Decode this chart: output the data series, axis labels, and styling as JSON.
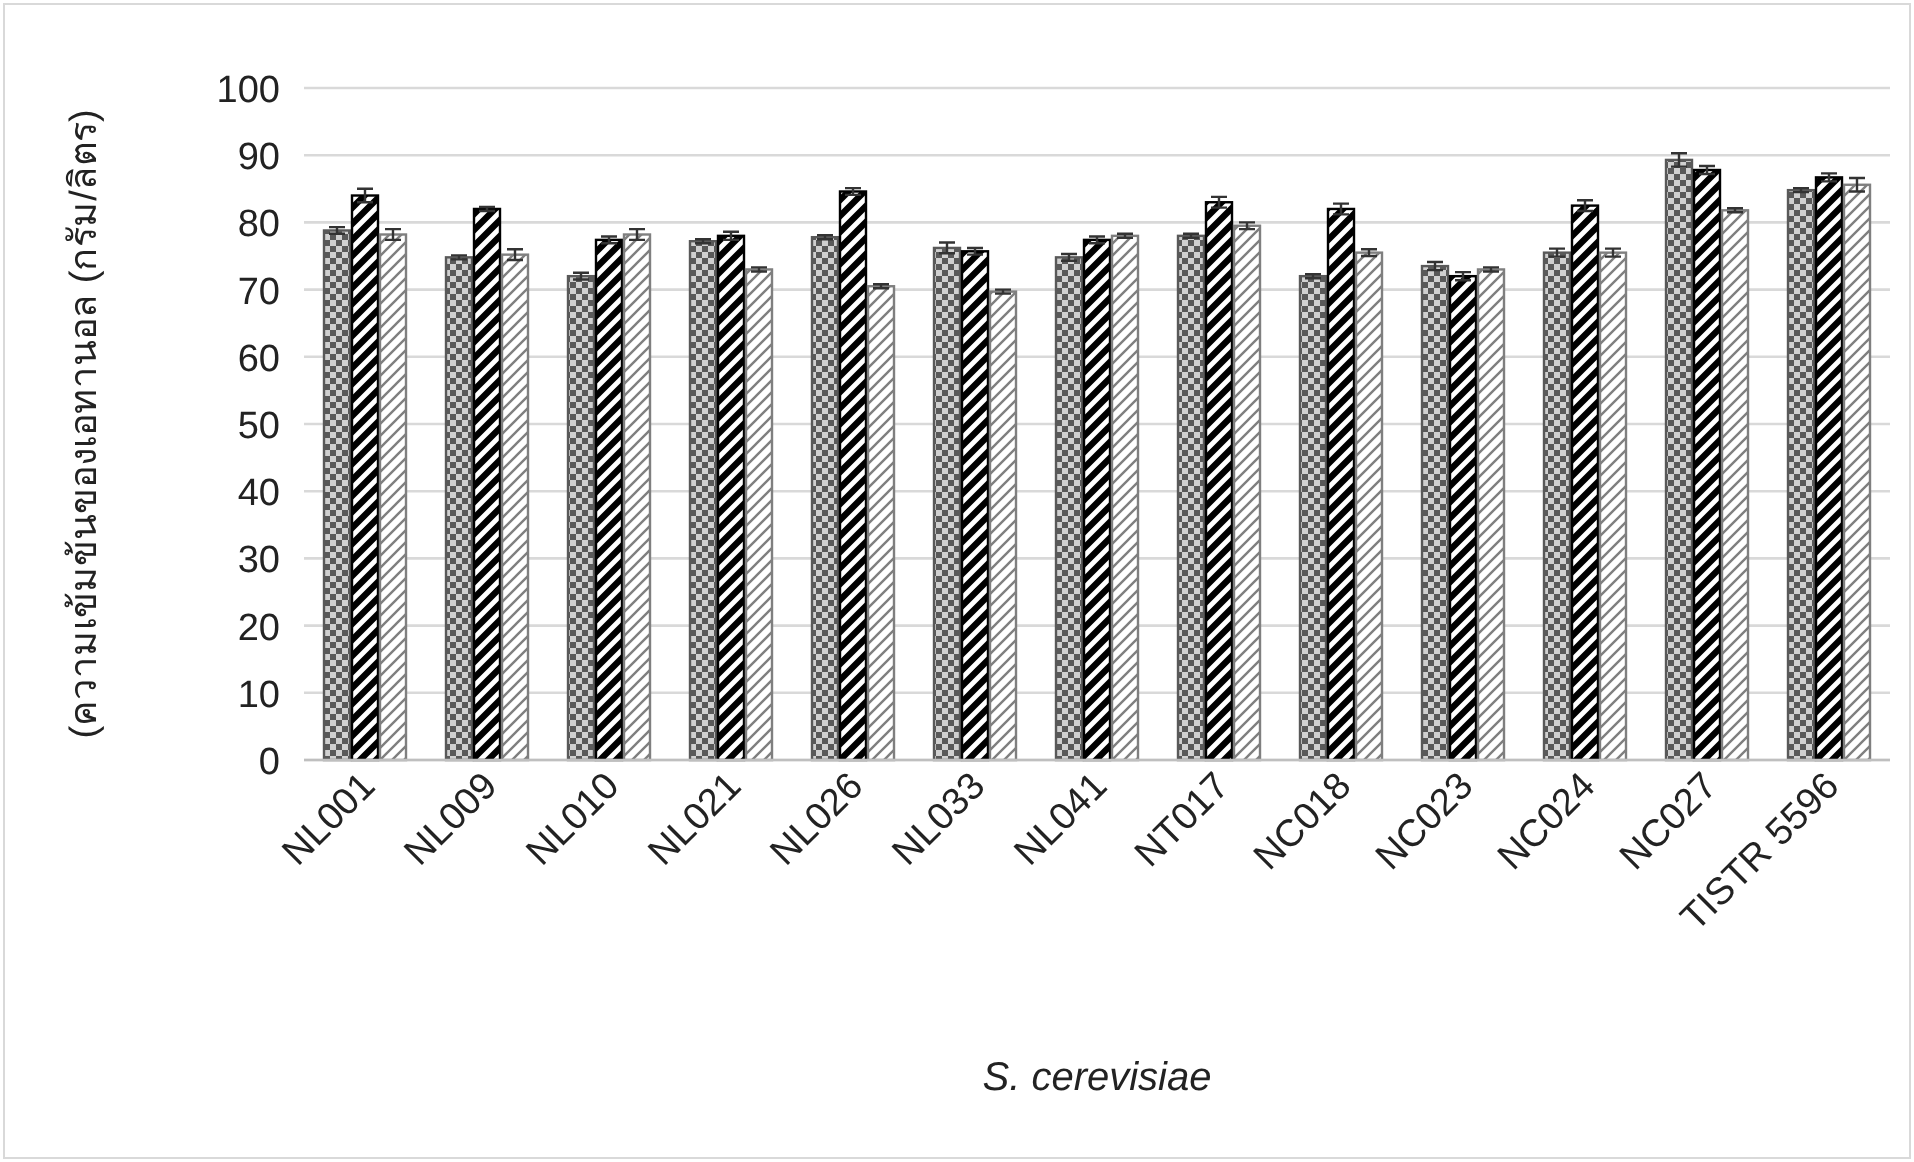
{
  "chart_data": {
    "type": "bar",
    "ylabel": "(ความเข้มข้นของเอทานอล (กรัม/ลิตร)",
    "xlabel": "S. cerevisiae",
    "categories": [
      "NL001",
      "NL009",
      "NL010",
      "NL021",
      "NL026",
      "NL033",
      "NL041",
      "NT017",
      "NC018",
      "NC023",
      "NC024",
      "NC027",
      "TISTR 5596"
    ],
    "series": [
      {
        "color": "#595959",
        "values": [
          78.8,
          74.8,
          72,
          77.2,
          77.8,
          76.2,
          74.8,
          78,
          72,
          73.5,
          75.5,
          89.3,
          84.8
        ],
        "errors": [
          0.5,
          0.3,
          0.5,
          0.3,
          0.3,
          0.8,
          0.5,
          0.3,
          0.3,
          0.6,
          0.6,
          1,
          0.3
        ]
      },
      {
        "color": "#000000",
        "values": [
          84,
          82,
          77.4,
          78,
          84.6,
          75.7,
          77.4,
          83,
          82,
          72,
          82.5,
          87.8,
          86.7
        ],
        "errors": [
          1,
          0.3,
          0.5,
          0.6,
          0.5,
          0.5,
          0.5,
          0.8,
          0.8,
          0.6,
          0.8,
          0.6,
          0.6
        ]
      },
      {
        "color": "#7f7f7f",
        "values": [
          78.2,
          75.2,
          78.2,
          73,
          70.5,
          69.7,
          78,
          79.5,
          75.5,
          73,
          75.5,
          81.8,
          85.6
        ],
        "errors": [
          0.8,
          0.8,
          0.8,
          0.3,
          0.3,
          0.3,
          0.3,
          0.5,
          0.5,
          0.3,
          0.6,
          0.3,
          1
        ]
      }
    ],
    "ylim": [
      0,
      100
    ],
    "yticks": [
      0,
      10,
      20,
      30,
      40,
      50,
      60,
      70,
      80,
      90,
      100
    ],
    "grid": "y"
  }
}
